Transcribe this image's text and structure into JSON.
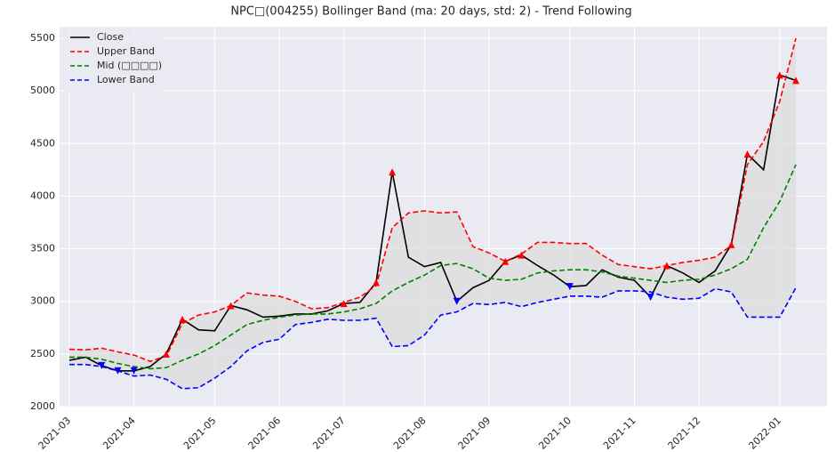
{
  "chart_data": {
    "type": "line",
    "title": "NPC□(004255) Bollinger Band (ma: 20 days, std: 2) - Trend Following",
    "categories": [
      "2021-03",
      null,
      null,
      null,
      "2021-04",
      null,
      null,
      null,
      null,
      "2021-05",
      null,
      null,
      null,
      "2021-06",
      null,
      null,
      null,
      "2021-07",
      null,
      null,
      null,
      null,
      "2021-08",
      null,
      null,
      null,
      "2021-09",
      null,
      null,
      null,
      null,
      "2021-10",
      null,
      null,
      null,
      "2021-11",
      null,
      null,
      null,
      "2021-12",
      null,
      null,
      null,
      null,
      "2022-01",
      null
    ],
    "series": [
      {
        "name": "Close",
        "color": "#000000",
        "linestyle": "solid",
        "values": [
          2440,
          2470,
          2390,
          2340,
          2340,
          2380,
          2500,
          2830,
          2730,
          2720,
          2960,
          2920,
          2850,
          2860,
          2880,
          2880,
          2910,
          2980,
          2990,
          3180,
          4230,
          3420,
          3330,
          3370,
          3000,
          3130,
          3200,
          3380,
          3440,
          3340,
          3250,
          3140,
          3150,
          3300,
          3230,
          3200,
          3040,
          3340,
          3270,
          3180,
          3290,
          3540,
          4400,
          4250,
          5150,
          5100
        ]
      },
      {
        "name": "Upper Band",
        "color": "#ff0000",
        "linestyle": "dashed",
        "values": [
          2545,
          2540,
          2555,
          2520,
          2490,
          2430,
          2480,
          2790,
          2870,
          2900,
          2960,
          3080,
          3060,
          3050,
          3000,
          2930,
          2940,
          2990,
          3040,
          3150,
          3700,
          3840,
          3860,
          3840,
          3850,
          3520,
          3460,
          3380,
          3450,
          3560,
          3560,
          3550,
          3550,
          3440,
          3350,
          3330,
          3310,
          3340,
          3370,
          3390,
          3420,
          3530,
          4300,
          4520,
          4900,
          5500
        ]
      },
      {
        "name": "Mid (□□□□)",
        "color": "#008000",
        "linestyle": "dashed",
        "values": [
          2470,
          2470,
          2450,
          2410,
          2380,
          2360,
          2370,
          2440,
          2500,
          2580,
          2680,
          2780,
          2820,
          2850,
          2870,
          2880,
          2880,
          2900,
          2930,
          2980,
          3100,
          3180,
          3250,
          3340,
          3360,
          3310,
          3220,
          3200,
          3210,
          3270,
          3290,
          3300,
          3300,
          3280,
          3240,
          3220,
          3200,
          3180,
          3200,
          3210,
          3250,
          3310,
          3400,
          3700,
          3950,
          4300
        ]
      },
      {
        "name": "Lower Band",
        "color": "#0000ff",
        "linestyle": "dashed",
        "values": [
          2400,
          2400,
          2380,
          2340,
          2290,
          2300,
          2260,
          2170,
          2180,
          2270,
          2380,
          2530,
          2610,
          2640,
          2780,
          2800,
          2830,
          2820,
          2820,
          2840,
          2570,
          2580,
          2680,
          2870,
          2900,
          2980,
          2970,
          2990,
          2950,
          2990,
          3020,
          3050,
          3050,
          3040,
          3100,
          3100,
          3090,
          3040,
          3020,
          3030,
          3120,
          3090,
          2850,
          2850,
          2850,
          3130
        ]
      },
      {
        "color": "#ff0000",
        "marker": "up",
        "values": [
          null,
          null,
          null,
          null,
          null,
          null,
          2500,
          2830,
          null,
          null,
          2960,
          null,
          null,
          null,
          null,
          null,
          null,
          2980,
          null,
          3180,
          4230,
          null,
          null,
          null,
          null,
          null,
          null,
          3380,
          3440,
          null,
          null,
          null,
          null,
          null,
          null,
          null,
          null,
          3340,
          null,
          null,
          null,
          3540,
          4400,
          null,
          5150,
          5100
        ]
      },
      {
        "color": "#0000ff",
        "marker": "down",
        "values": [
          null,
          null,
          2390,
          2340,
          2340,
          null,
          null,
          null,
          null,
          null,
          null,
          null,
          null,
          null,
          null,
          null,
          null,
          null,
          null,
          null,
          null,
          null,
          null,
          null,
          3000,
          null,
          null,
          null,
          null,
          null,
          null,
          3140,
          null,
          null,
          null,
          null,
          3040,
          null,
          null,
          null,
          null,
          null,
          null,
          null,
          null,
          null
        ]
      }
    ],
    "band_fill": "#dcdcdc",
    "ylim": [
      2000,
      5610
    ],
    "yticks": [
      2000,
      2500,
      3000,
      3500,
      4000,
      4500,
      5000,
      5500
    ],
    "grid": true,
    "legend": "upper left"
  }
}
